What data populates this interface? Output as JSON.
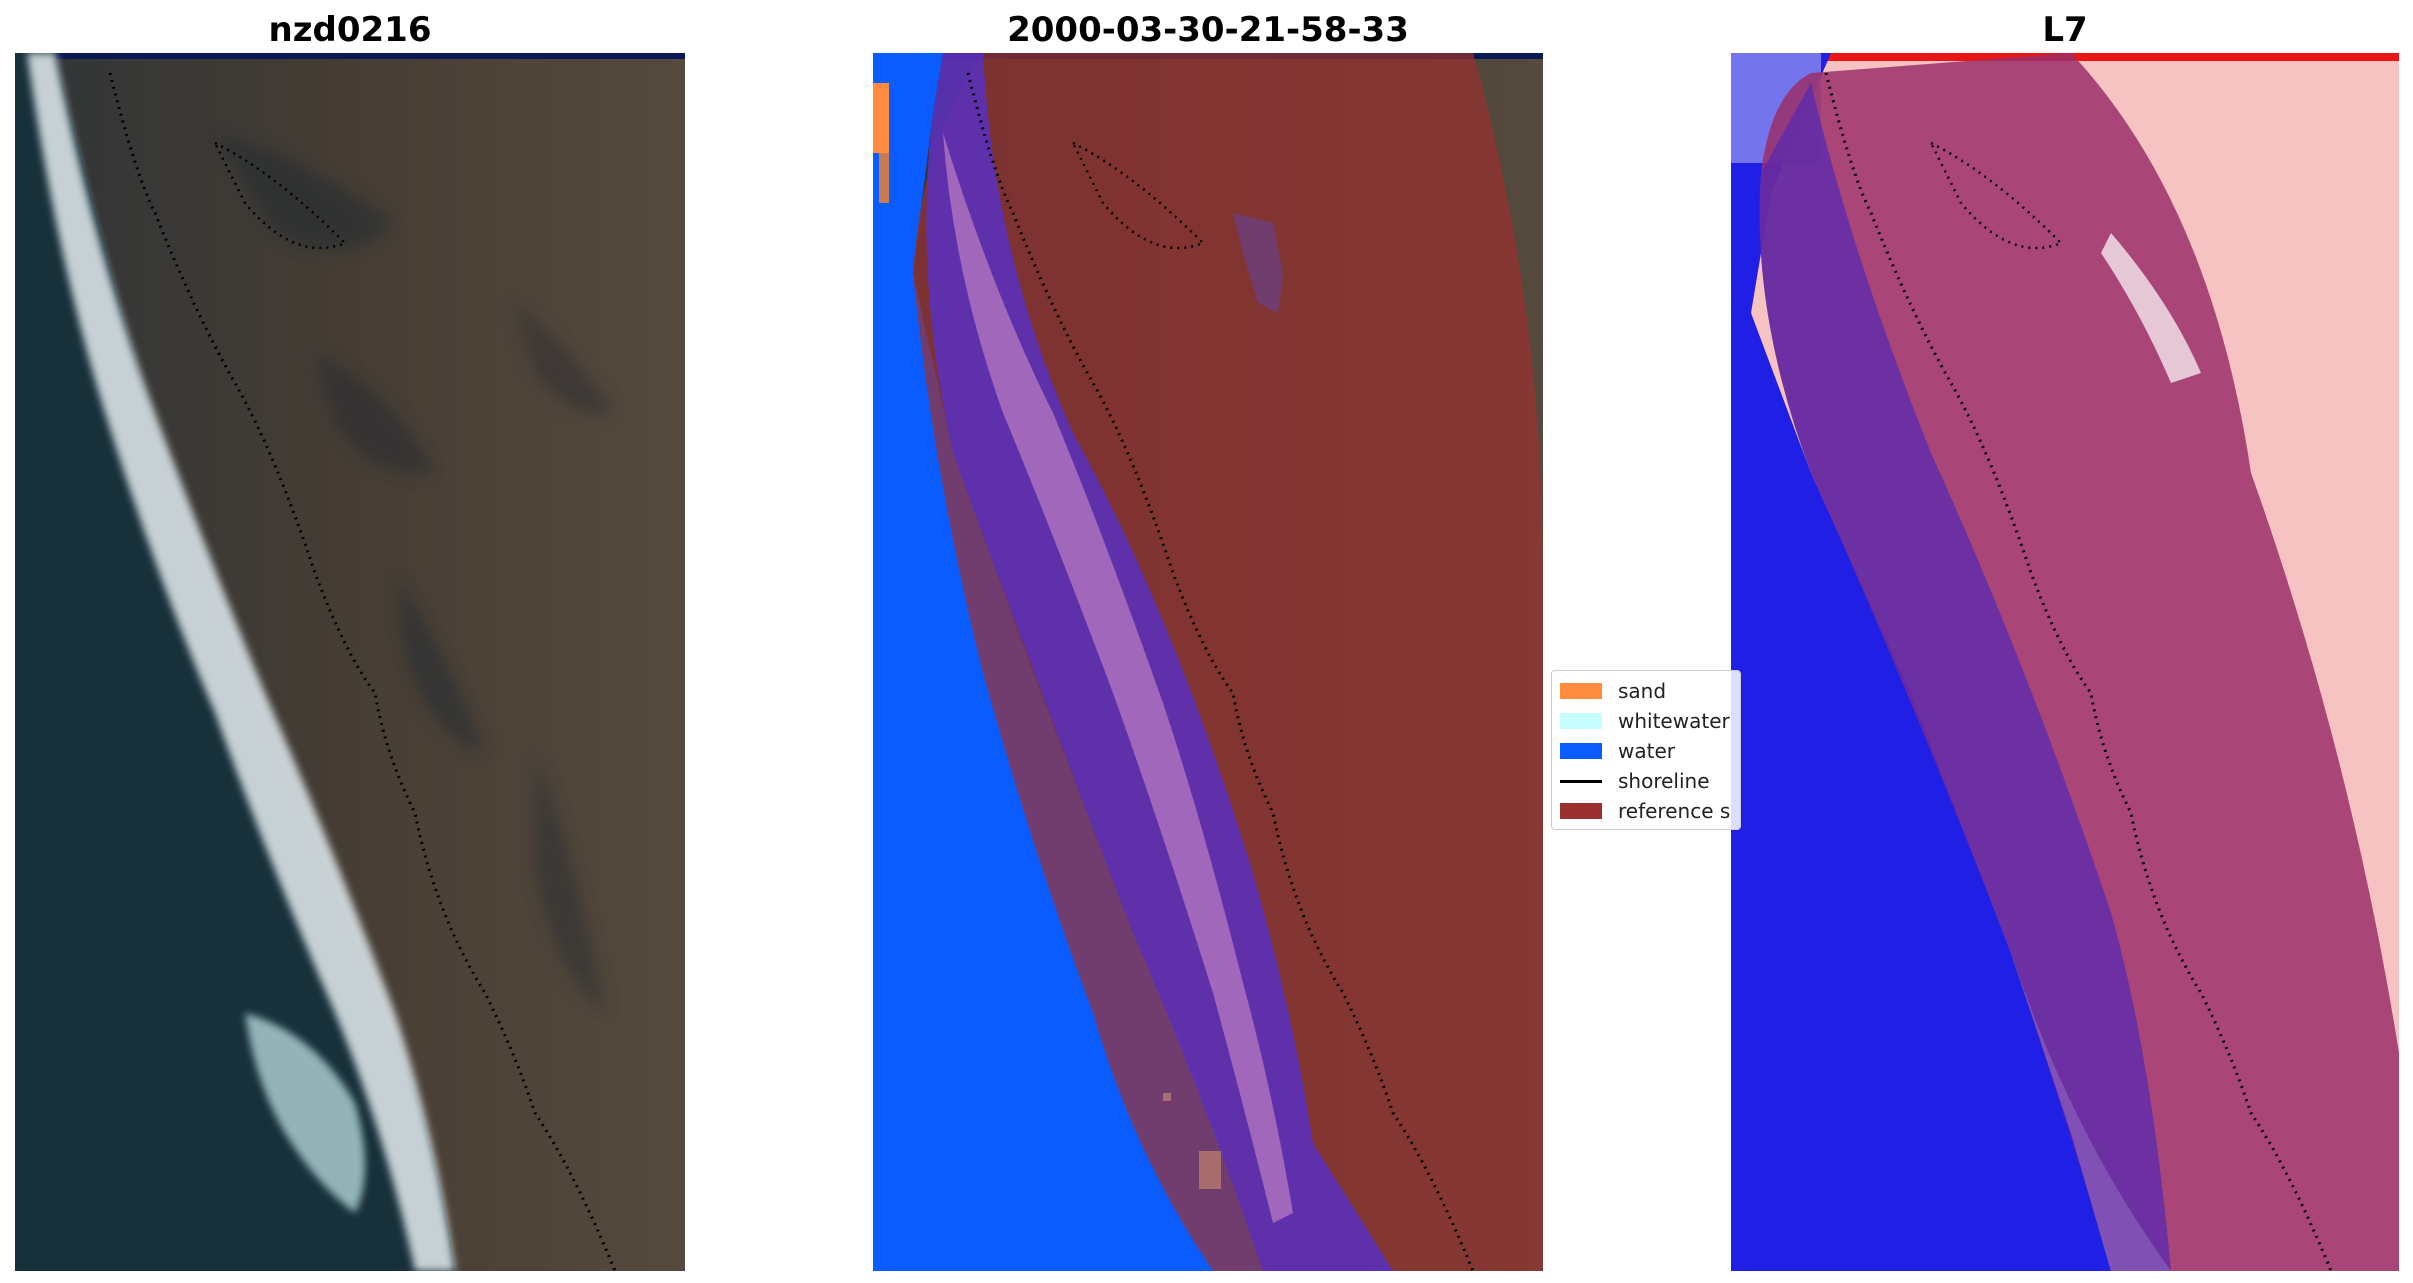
{
  "panels": [
    {
      "title": "nzd0216"
    },
    {
      "title": "2000-03-30-21-58-33"
    },
    {
      "title": "L7"
    }
  ],
  "legend": {
    "items": [
      {
        "label": "sand",
        "color": "#ff8c3f",
        "kind": "patch"
      },
      {
        "label": "whitewater",
        "color": "#c6fcfc",
        "kind": "patch"
      },
      {
        "label": "water",
        "color": "#0a5cff",
        "kind": "patch"
      },
      {
        "label": "shoreline",
        "color": "#000000",
        "kind": "line"
      },
      {
        "label": "reference s",
        "color": "#9b3030",
        "kind": "patch"
      }
    ]
  },
  "colors": {
    "water": "#0a5cff",
    "sand": "#ff8c3f",
    "whitewater": "#c6fcfc",
    "reference_shoreline": "#9b3030",
    "land": "#4a3f36",
    "sea_dark": "#17303a"
  }
}
